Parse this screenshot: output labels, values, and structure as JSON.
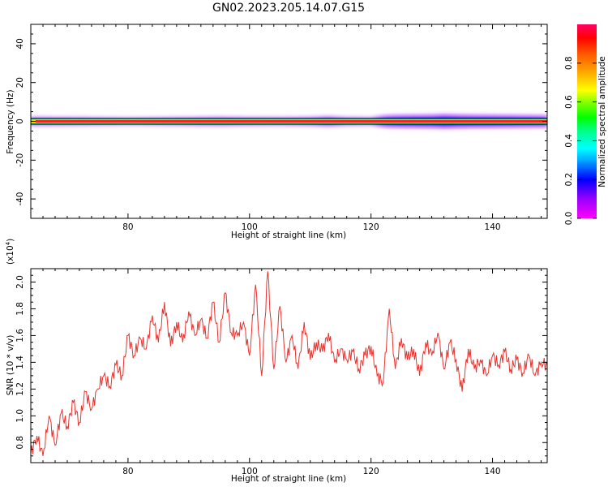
{
  "figure_title": "GN02.2023.205.14.07.G15",
  "colors": {
    "trace": "#e8322d",
    "axes": "#000000"
  },
  "chart_data": [
    {
      "type": "heatmap",
      "title": "",
      "xlabel": "Height of straight line (km)",
      "ylabel": "Frequency (Hz)",
      "xlim": [
        64,
        149
      ],
      "ylim": [
        -50,
        50
      ],
      "x_ticks": [
        80,
        100,
        120,
        140
      ],
      "y_ticks": [
        -40,
        -20,
        0,
        20,
        40
      ],
      "colorbar": {
        "label": "Normalized spectral amplitude",
        "range": [
          0,
          1
        ],
        "ticks": [
          0.0,
          0.2,
          0.4,
          0.6,
          0.8
        ],
        "colormap": "rainbow (magenta to red)"
      },
      "description_values": {
        "center_frequency_hz": 0,
        "core_amplitude": 0.95
      },
      "spread_profile": {
        "x": [
          64,
          70,
          75,
          80,
          85,
          90,
          95,
          100,
          105,
          110,
          113,
          116,
          120,
          122,
          123,
          125,
          130,
          132,
          135,
          140,
          145,
          149
        ],
        "halfwidth_hz": [
          2.5,
          2.4,
          2.2,
          2.0,
          2.2,
          2.4,
          2.6,
          2.4,
          2.3,
          2.5,
          3.0,
          2.4,
          2.2,
          3.5,
          3.8,
          4.0,
          4.2,
          4.6,
          4.2,
          4.0,
          3.8,
          3.6
        ]
      }
    },
    {
      "type": "line",
      "title": "",
      "xlabel": "Height of straight line (km)",
      "ylabel": "SNR (10 * v/v)",
      "y_scale_label": "(x10",
      "y_scale_exp": "4",
      "y_scale_close": ")",
      "xlim": [
        64,
        149
      ],
      "ylim": [
        0.65,
        2.1
      ],
      "x_ticks": [
        80,
        100,
        120,
        140
      ],
      "y_ticks": [
        0.8,
        1.0,
        1.2,
        1.4,
        1.6,
        1.8,
        2.0
      ],
      "series": [
        {
          "x": [
            64,
            65,
            66,
            67,
            68,
            69,
            70,
            71,
            72,
            73,
            74,
            75,
            76,
            77,
            78,
            79,
            80,
            81,
            82,
            83,
            84,
            85,
            86,
            87,
            88,
            89,
            90,
            91,
            92,
            93,
            94,
            95,
            96,
            97,
            98,
            99,
            100,
            101,
            102,
            103,
            104,
            105,
            106,
            107,
            108,
            109,
            110,
            111,
            112,
            113,
            114,
            115,
            116,
            117,
            118,
            119,
            120,
            121,
            122,
            123,
            124,
            125,
            126,
            127,
            128,
            129,
            130,
            131,
            132,
            133,
            134,
            135,
            136,
            137,
            138,
            139,
            140,
            141,
            142,
            143,
            144,
            145,
            146,
            147,
            148,
            149
          ],
          "values": [
            0.72,
            0.85,
            0.7,
            1.0,
            0.78,
            1.02,
            0.92,
            1.1,
            0.95,
            1.18,
            1.05,
            1.2,
            1.3,
            1.22,
            1.38,
            1.3,
            1.6,
            1.45,
            1.58,
            1.5,
            1.75,
            1.55,
            1.85,
            1.52,
            1.7,
            1.55,
            1.78,
            1.6,
            1.72,
            1.58,
            1.85,
            1.55,
            1.92,
            1.62,
            1.6,
            1.7,
            1.45,
            1.98,
            1.3,
            2.08,
            1.35,
            1.82,
            1.4,
            1.6,
            1.35,
            1.7,
            1.42,
            1.55,
            1.48,
            1.62,
            1.4,
            1.5,
            1.42,
            1.48,
            1.35,
            1.45,
            1.52,
            1.3,
            1.25,
            1.8,
            1.35,
            1.58,
            1.42,
            1.5,
            1.3,
            1.55,
            1.45,
            1.62,
            1.35,
            1.55,
            1.42,
            1.18,
            1.5,
            1.35,
            1.42,
            1.3,
            1.45,
            1.38,
            1.48,
            1.35,
            1.42,
            1.32,
            1.45,
            1.3,
            1.4,
            1.38
          ]
        }
      ]
    }
  ]
}
